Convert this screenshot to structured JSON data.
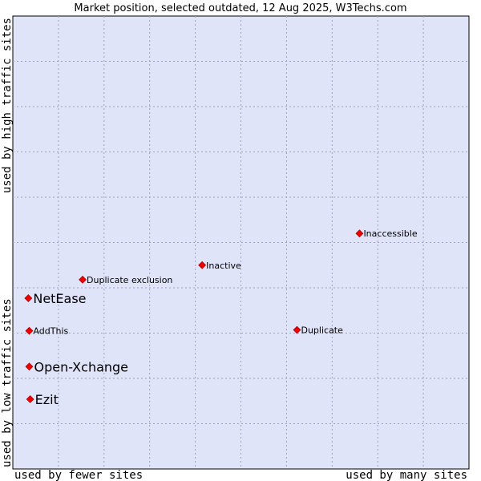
{
  "chart_data": {
    "type": "scatter",
    "title": "Market position, selected outdated, 12 Aug 2025, W3Techs.com",
    "xlabel_left": "used by fewer sites",
    "xlabel_right": "used by many sites",
    "ylabel_top": "used by high traffic sites",
    "ylabel_bottom": "used by low traffic sites",
    "grid": true,
    "xlim": [
      0,
      100
    ],
    "ylim": [
      0,
      100
    ],
    "colors": {
      "plot_bg": "#e0e4f8",
      "marker": "#ee0000",
      "border": "#000000"
    },
    "points": [
      {
        "label": "Inaccessible",
        "x": 76.0,
        "y": 52.0,
        "label_size": "small"
      },
      {
        "label": "Inactive",
        "x": 41.5,
        "y": 45.0,
        "label_size": "small"
      },
      {
        "label": "Duplicate exclusion",
        "x": 15.3,
        "y": 41.8,
        "label_size": "small"
      },
      {
        "label": "NetEase",
        "x": 3.4,
        "y": 37.7,
        "label_size": "big"
      },
      {
        "label": "AddThis",
        "x": 3.6,
        "y": 30.5,
        "label_size": "small"
      },
      {
        "label": "Duplicate",
        "x": 62.3,
        "y": 30.7,
        "label_size": "small"
      },
      {
        "label": "Open-Xchange",
        "x": 3.6,
        "y": 22.6,
        "label_size": "big"
      },
      {
        "label": "Ezit",
        "x": 3.8,
        "y": 15.4,
        "label_size": "big"
      }
    ]
  }
}
